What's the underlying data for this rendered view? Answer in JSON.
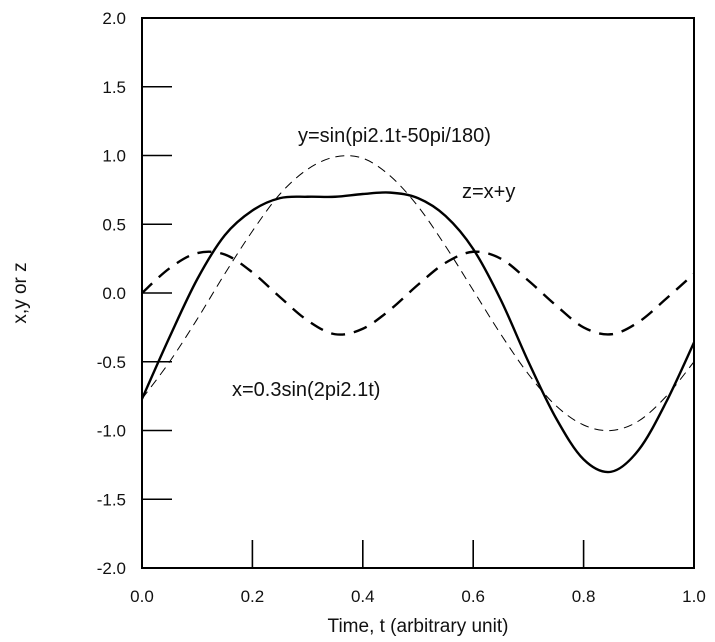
{
  "chart_data": {
    "type": "line",
    "xlabel": "Time, t  (arbitrary unit)",
    "ylabel": "x,y or z",
    "xlim": [
      0.0,
      1.0
    ],
    "ylim": [
      -2.0,
      2.0
    ],
    "x_ticks": [
      "0.0",
      "0.2",
      "0.4",
      "0.6",
      "0.8",
      "1.0"
    ],
    "y_ticks": [
      "2.0",
      "1.5",
      "1.0",
      "0.5",
      "0.0",
      "-0.5",
      "-1.0",
      "-1.5",
      "-2.0"
    ],
    "x_tick_values": [
      0.0,
      0.2,
      0.4,
      0.6,
      0.8,
      1.0
    ],
    "y_tick_values": [
      2.0,
      1.5,
      1.0,
      0.5,
      0.0,
      -0.5,
      -1.0,
      -1.5,
      -2.0
    ],
    "grid": false,
    "x": [
      0.0,
      0.05,
      0.1,
      0.15,
      0.2,
      0.25,
      0.3,
      0.35,
      0.4,
      0.45,
      0.5,
      0.55,
      0.6,
      0.65,
      0.7,
      0.75,
      0.8,
      0.85,
      0.9,
      0.95,
      1.0
    ],
    "series": [
      {
        "name": "x=0.3sin(2pi2.1t)",
        "style": "dashed-bold",
        "values": [
          0.0,
          0.18,
          0.29,
          0.28,
          0.15,
          -0.03,
          -0.2,
          -0.3,
          -0.26,
          -0.12,
          0.06,
          0.22,
          0.3,
          0.25,
          0.09,
          -0.09,
          -0.25,
          -0.3,
          -0.21,
          -0.04,
          0.14
        ]
      },
      {
        "name": "y=sin(pi2.1t-50pi/180)",
        "style": "dashed-thin",
        "values": [
          -0.77,
          -0.5,
          -0.19,
          0.14,
          0.45,
          0.72,
          0.9,
          0.99,
          0.98,
          0.85,
          0.63,
          0.34,
          0.02,
          -0.3,
          -0.59,
          -0.82,
          -0.96,
          -1.0,
          -0.93,
          -0.75,
          -0.5
        ]
      },
      {
        "name": "z=x+y",
        "style": "solid",
        "values": [
          -0.77,
          -0.32,
          0.1,
          0.42,
          0.6,
          0.69,
          0.7,
          0.7,
          0.72,
          0.73,
          0.69,
          0.56,
          0.32,
          -0.05,
          -0.5,
          -0.91,
          -1.21,
          -1.3,
          -1.14,
          -0.79,
          -0.36
        ]
      }
    ]
  }
}
